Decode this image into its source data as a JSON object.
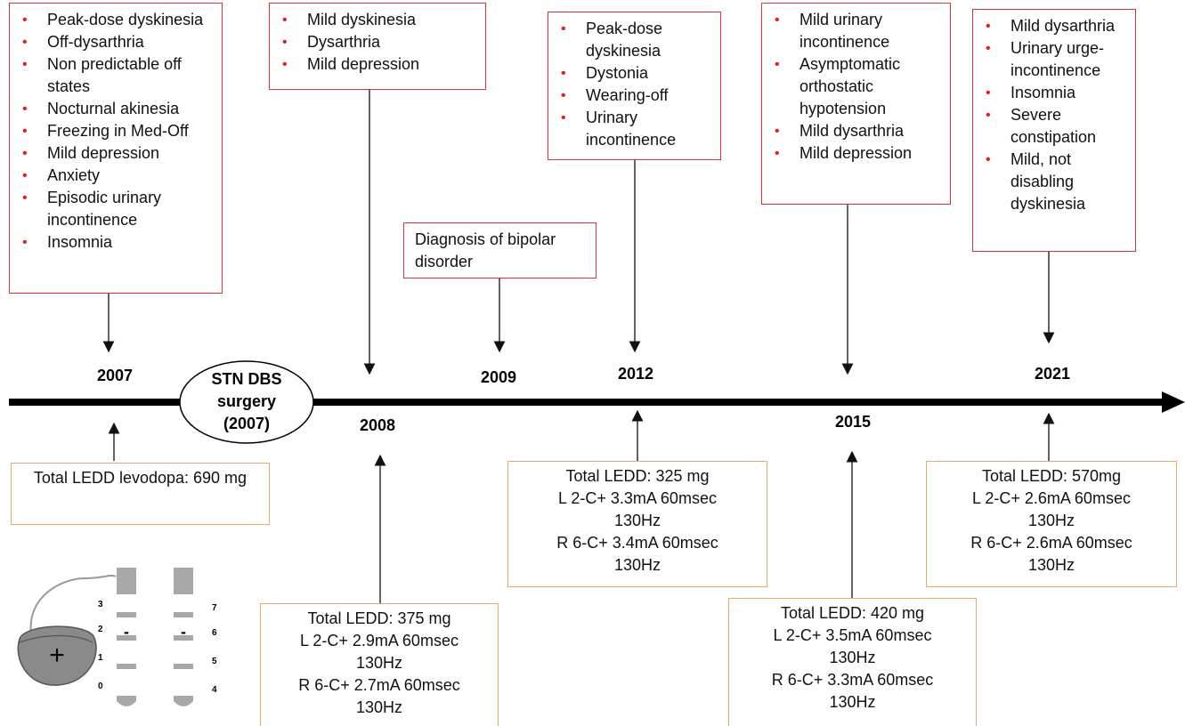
{
  "top_boxes": [
    {
      "items": [
        "Peak-dose dyskinesia",
        "Off-dysarthria",
        "Non predictable off states",
        "Nocturnal akinesia",
        "Freezing in Med-Off",
        "Mild depression",
        "Anxiety",
        "Episodic urinary incontinence",
        "Insomnia"
      ]
    },
    {
      "items": [
        "Mild dyskinesia",
        "Dysarthria",
        "Mild depression"
      ]
    },
    {
      "text": "Diagnosis of bipolar disorder"
    },
    {
      "items": [
        "Peak-dose dyskinesia",
        "Dystonia",
        "Wearing-off",
        "Urinary incontinence"
      ]
    },
    {
      "items": [
        "Mild urinary incontinence",
        "Asymptomatic orthostatic hypotension",
        "Mild dysarthria",
        "Mild depression"
      ]
    },
    {
      "items": [
        "Mild dysarthria",
        "Urinary urge-incontinence",
        "Insomnia",
        "Severe constipation",
        "Mild, not disabling dyskinesia"
      ]
    }
  ],
  "years": [
    "2007",
    "2008",
    "2009",
    "2012",
    "2015",
    "2021"
  ],
  "surgery": {
    "lines": [
      "STN DBS",
      "surgery",
      "(2007)"
    ]
  },
  "bottom_boxes": [
    {
      "lines": [
        "Total LEDD levodopa: 690 mg"
      ]
    },
    {
      "lines": [
        "Total LEDD: 375 mg",
        "L 2-C+ 2.9mA 60msec 130Hz",
        "R 6-C+ 2.7mA 60msec 130Hz"
      ]
    },
    {
      "lines": [
        "Total LEDD: 325 mg",
        "L 2-C+ 3.3mA 60msec 130Hz",
        "R 6-C+ 3.4mA 60msec 130Hz"
      ]
    },
    {
      "lines": [
        "Total LEDD: 420 mg",
        "L 2-C+ 3.5mA 60msec 130Hz",
        "R 6-C+ 3.3mA 60msec 130Hz"
      ]
    },
    {
      "lines": [
        "Total LEDD: 570mg",
        "L 2-C+ 2.6mA 60msec 130Hz",
        "R 6-C+ 2.6mA 60msec 130Hz"
      ]
    }
  ],
  "electrode": {
    "case_sign": "+",
    "contact_signs": [
      "-",
      "-"
    ],
    "left_contacts": [
      "3",
      "2",
      "1",
      "0"
    ],
    "right_contacts": [
      "7",
      "6",
      "5",
      "4"
    ]
  }
}
